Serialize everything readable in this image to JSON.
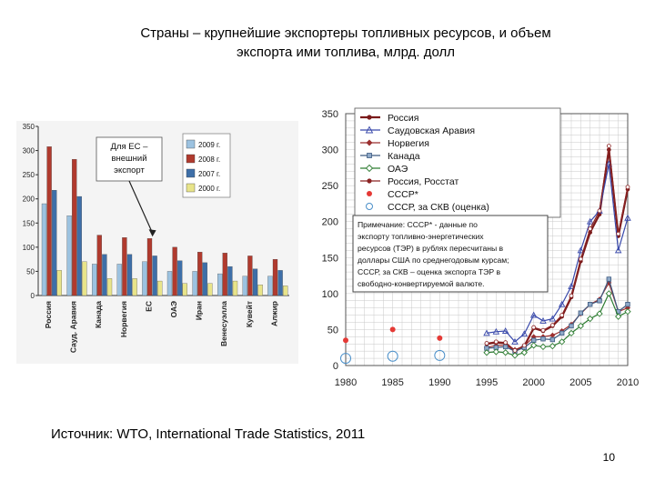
{
  "title_line1": "Страны – крупнейшие экспортеры топливных ресурсов, и объем",
  "title_line2": "экспорта ими топлива, млрд. долл",
  "source": "Источник: WTO, International Trade Statistics, 2011",
  "page_number": "10",
  "chart_data": [
    {
      "type": "bar",
      "categories": [
        "Россия",
        "Сауд. Аравия",
        "Канада",
        "Норвегия",
        "ЕС",
        "ОАЭ",
        "Иран",
        "Венесуэлла",
        "Кувейт",
        "Алжир"
      ],
      "series": [
        {
          "name": "2009 г.",
          "color": "#9cc2e0",
          "values": [
            190,
            165,
            65,
            65,
            70,
            50,
            50,
            45,
            40,
            40
          ]
        },
        {
          "name": "2008 г.",
          "color": "#b03a2e",
          "values": [
            308,
            282,
            125,
            120,
            118,
            100,
            90,
            88,
            82,
            75
          ]
        },
        {
          "name": "2007 г.",
          "color": "#3e6fa8",
          "values": [
            218,
            205,
            85,
            85,
            82,
            72,
            68,
            60,
            55,
            52
          ]
        },
        {
          "name": "2000 г.",
          "color": "#e8e48a",
          "values": [
            52,
            70,
            35,
            35,
            30,
            25,
            25,
            30,
            22,
            20
          ]
        }
      ],
      "ylim": [
        0,
        350
      ],
      "yticks": [
        0,
        50,
        100,
        150,
        200,
        250,
        300,
        350
      ],
      "annotation": "Для ЕС – внешний экспорт",
      "annotation_index": 4,
      "legend_position": "top-right"
    },
    {
      "type": "line",
      "xlim": [
        1980,
        2010
      ],
      "ylim": [
        0,
        350
      ],
      "xticks": [
        1980,
        1985,
        1990,
        1995,
        2000,
        2005,
        2010
      ],
      "yticks": [
        0,
        50,
        100,
        150,
        200,
        250,
        300,
        350
      ],
      "grid": true,
      "legend_position": "top",
      "x": [
        1995,
        1996,
        1997,
        1998,
        1999,
        2000,
        2001,
        2002,
        2003,
        2004,
        2005,
        2006,
        2007,
        2008,
        2009,
        2010
      ],
      "series": [
        {
          "name": "Россия",
          "color": "#7a1a1a",
          "marker": "dot",
          "values": [
            30,
            32,
            31,
            20,
            27,
            52,
            48,
            55,
            68,
            95,
            145,
            185,
            210,
            300,
            180,
            245
          ]
        },
        {
          "name": "Саудовская Аравия",
          "color": "#3949ab",
          "marker": "triangle",
          "values": [
            45,
            47,
            48,
            33,
            44,
            70,
            62,
            65,
            85,
            110,
            160,
            200,
            215,
            280,
            160,
            205
          ]
        },
        {
          "name": "Норвегия",
          "color": "#9b2f2f",
          "marker": "diamond",
          "values": [
            25,
            28,
            28,
            22,
            27,
            40,
            40,
            42,
            48,
            57,
            72,
            85,
            92,
            115,
            75,
            80
          ]
        },
        {
          "name": "Канада",
          "color": "#3d5a80",
          "marker": "square",
          "values": [
            24,
            25,
            26,
            20,
            25,
            35,
            37,
            36,
            45,
            55,
            73,
            85,
            90,
            120,
            75,
            85
          ]
        },
        {
          "name": "ОАЭ",
          "color": "#2e7d32",
          "marker": "diamond-open",
          "values": [
            18,
            19,
            18,
            14,
            18,
            28,
            26,
            27,
            33,
            45,
            55,
            65,
            72,
            100,
            68,
            75
          ]
        },
        {
          "name": "Россия, Росстат",
          "color": "#8b2323",
          "marker": "dot-outline",
          "values": [
            31,
            33,
            32,
            21,
            28,
            53,
            49,
            56,
            70,
            97,
            148,
            190,
            215,
            305,
            183,
            248
          ]
        }
      ],
      "points_ussr": {
        "name": "СССР*",
        "color": "#e53935",
        "x": [
          1980,
          1985,
          1990
        ],
        "values": [
          35,
          50,
          38
        ]
      },
      "points_ussr_skv": {
        "name": "СССР, за СКВ (оценка)",
        "color": "#4a8fc9",
        "x": [
          1980,
          1985,
          1990
        ],
        "values": [
          10,
          13,
          14
        ]
      },
      "note_lines": [
        "Примечание: СССР* - данные по",
        "экспорту топливно-энергетических",
        "ресурсов (ТЭР) в рублях пересчитаны в",
        "доллары США по среднегодовым курсам;",
        "СССР, за СКВ – оценка экспорта ТЭР в",
        "свободно-конвертируемой валюте."
      ]
    }
  ]
}
